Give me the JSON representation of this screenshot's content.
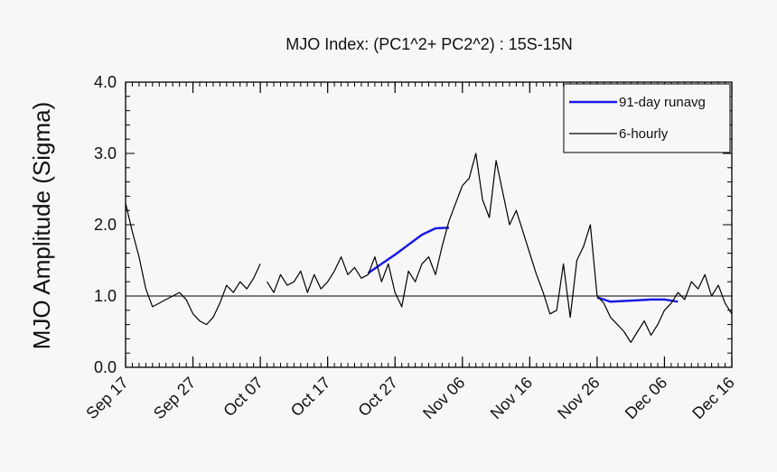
{
  "chart_data": {
    "type": "line",
    "title": "MJO Index: (PC1^2+ PC2^2) : 15S-15N",
    "ylabel": "MJO Amplitude (Sigma)",
    "xlabel": "",
    "xlim": [
      "Sep 17",
      "Dec 16"
    ],
    "ylim": [
      0,
      4
    ],
    "x_tick_labels": [
      "Sep 17",
      "Sep 27",
      "Oct 07",
      "Oct 17",
      "Oct 27",
      "Nov 06",
      "Nov 16",
      "Nov 26",
      "Dec 06",
      "Dec 16"
    ],
    "y_tick_labels": [
      "0.0",
      "1.0",
      "2.0",
      "3.0",
      "4.0"
    ],
    "y_ticks": [
      0,
      1,
      2,
      3,
      4
    ],
    "reference_line": 1.0,
    "legend_position": "top-right",
    "grid": false,
    "series": [
      {
        "name": "91-day runavg",
        "color": "#1a1ae6",
        "segments": [
          {
            "x": [
              "Oct 23",
              "Oct 25",
              "Oct 27",
              "Oct 29",
              "Oct 31",
              "Nov 02",
              "Nov 04"
            ],
            "y": [
              1.32,
              1.45,
              1.58,
              1.72,
              1.86,
              1.95,
              1.96
            ]
          },
          {
            "x": [
              "Nov 26",
              "Nov 28",
              "Nov 30",
              "Dec 02",
              "Dec 04",
              "Dec 06",
              "Dec 08"
            ],
            "y": [
              0.98,
              0.92,
              0.93,
              0.94,
              0.95,
              0.95,
              0.92
            ]
          }
        ]
      },
      {
        "name": "6-hourly",
        "color": "#000000",
        "segments": [
          {
            "x": [
              "Sep 17",
              "Sep 18",
              "Sep 19",
              "Sep 20",
              "Sep 21",
              "Sep 22",
              "Sep 23",
              "Sep 24",
              "Sep 25",
              "Sep 26",
              "Sep 27",
              "Sep 28",
              "Sep 29",
              "Sep 30",
              "Oct 01",
              "Oct 02",
              "Oct 03",
              "Oct 04",
              "Oct 05",
              "Oct 06",
              "Oct 07"
            ],
            "y": [
              2.3,
              1.9,
              1.55,
              1.1,
              0.85,
              0.9,
              0.95,
              1.0,
              1.05,
              0.95,
              0.75,
              0.65,
              0.6,
              0.7,
              0.9,
              1.15,
              1.05,
              1.2,
              1.1,
              1.25,
              1.45
            ]
          },
          {
            "x": [
              "Oct 08",
              "Oct 09",
              "Oct 10",
              "Oct 11",
              "Oct 12",
              "Oct 13",
              "Oct 14",
              "Oct 15",
              "Oct 16",
              "Oct 17",
              "Oct 18",
              "Oct 19",
              "Oct 20",
              "Oct 21",
              "Oct 22",
              "Oct 23",
              "Oct 24",
              "Oct 25",
              "Oct 26",
              "Oct 27",
              "Oct 28",
              "Oct 29",
              "Oct 30",
              "Oct 31",
              "Nov 01",
              "Nov 02",
              "Nov 03",
              "Nov 04",
              "Nov 05",
              "Nov 06",
              "Nov 07",
              "Nov 08",
              "Nov 09",
              "Nov 10",
              "Nov 11",
              "Nov 12",
              "Nov 13",
              "Nov 14",
              "Nov 15",
              "Nov 16",
              "Nov 17",
              "Nov 18",
              "Nov 19",
              "Nov 20",
              "Nov 21",
              "Nov 22",
              "Nov 23",
              "Nov 24",
              "Nov 25",
              "Nov 26",
              "Nov 27",
              "Nov 28",
              "Nov 29",
              "Nov 30",
              "Dec 01",
              "Dec 02",
              "Dec 03",
              "Dec 04",
              "Dec 05",
              "Dec 06",
              "Dec 07",
              "Dec 08",
              "Dec 09",
              "Dec 10",
              "Dec 11",
              "Dec 12",
              "Dec 13",
              "Dec 14",
              "Dec 15",
              "Dec 16"
            ],
            "y": [
              1.2,
              1.05,
              1.3,
              1.15,
              1.2,
              1.35,
              1.05,
              1.3,
              1.1,
              1.2,
              1.35,
              1.55,
              1.3,
              1.4,
              1.25,
              1.3,
              1.55,
              1.2,
              1.45,
              1.05,
              0.85,
              1.35,
              1.2,
              1.45,
              1.55,
              1.3,
              1.7,
              2.05,
              2.3,
              2.55,
              2.65,
              3.0,
              2.35,
              2.1,
              2.9,
              2.45,
              2.0,
              2.2,
              1.9,
              1.6,
              1.3,
              1.05,
              0.75,
              0.8,
              1.45,
              0.7,
              1.5,
              1.7,
              2.0,
              1.0,
              0.9,
              0.7,
              0.6,
              0.5,
              0.35,
              0.5,
              0.65,
              0.45,
              0.6,
              0.8,
              0.9,
              1.05,
              0.95,
              1.2,
              1.1,
              1.3,
              1.0,
              1.15,
              0.9,
              0.75
            ]
          }
        ]
      }
    ]
  }
}
